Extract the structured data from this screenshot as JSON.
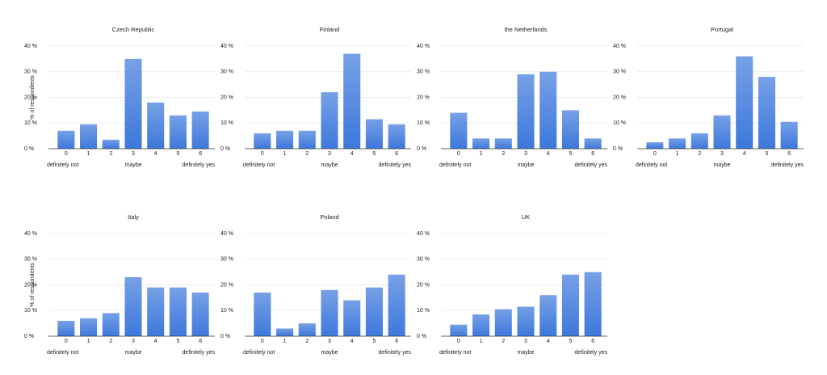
{
  "chart_data": [
    {
      "type": "bar",
      "title": "Czech Republic",
      "ylabel": "% of respondents",
      "categories": [
        "0",
        "1",
        "2",
        "3",
        "4",
        "5",
        "6"
      ],
      "values": [
        7,
        9.5,
        3.5,
        35,
        18,
        13,
        14.5
      ],
      "color": "#3d78dc",
      "ylim": [
        0,
        40
      ],
      "yticks": [
        {
          "value": 0,
          "label": "0 %"
        },
        {
          "value": 10,
          "label": "10 %"
        },
        {
          "value": 20,
          "label": "20 %"
        },
        {
          "value": 30,
          "label": "30 %"
        },
        {
          "value": 40,
          "label": "40 %"
        }
      ],
      "grid": true,
      "annotations": [
        "definitely not",
        "maybe",
        "definitely yes"
      ]
    },
    {
      "type": "bar",
      "title": "Finland",
      "categories": [
        "0",
        "1",
        "2",
        "3",
        "4",
        "5",
        "6"
      ],
      "values": [
        6,
        7,
        7,
        22,
        37,
        11.5,
        9.5
      ],
      "color": "#3d78dc",
      "ylim": [
        0,
        40
      ],
      "yticks": [
        {
          "value": 0,
          "label": "0 %"
        },
        {
          "value": 10,
          "label": "10 %"
        },
        {
          "value": 20,
          "label": "20 %"
        },
        {
          "value": 30,
          "label": "30 %"
        },
        {
          "value": 40,
          "label": "40 %"
        }
      ],
      "grid": true,
      "annotations": [
        "definitely not",
        "maybe",
        "definitely yes"
      ]
    },
    {
      "type": "bar",
      "title": "the Netherlands",
      "categories": [
        "0",
        "1",
        "2",
        "3",
        "4",
        "5",
        "6"
      ],
      "values": [
        14,
        4,
        4,
        29,
        30,
        15,
        4
      ],
      "color": "#3d78dc",
      "ylim": [
        0,
        40
      ],
      "yticks": [
        {
          "value": 0,
          "label": "0 %"
        },
        {
          "value": 10,
          "label": "10 %"
        },
        {
          "value": 20,
          "label": "20 %"
        },
        {
          "value": 30,
          "label": "30 %"
        },
        {
          "value": 40,
          "label": "40 %"
        }
      ],
      "grid": true,
      "annotations": [
        "definitely not",
        "maybe",
        "definitely yes"
      ]
    },
    {
      "type": "bar",
      "title": "Portugal",
      "categories": [
        "0",
        "1",
        "2",
        "3",
        "4",
        "5",
        "6"
      ],
      "values": [
        2.5,
        4,
        6,
        13,
        36,
        28,
        10.5
      ],
      "color": "#3d78dc",
      "ylim": [
        0,
        40
      ],
      "yticks": [
        {
          "value": 0,
          "label": "0 %"
        },
        {
          "value": 10,
          "label": "10 %"
        },
        {
          "value": 20,
          "label": "20 %"
        },
        {
          "value": 30,
          "label": "30 %"
        },
        {
          "value": 40,
          "label": "40 %"
        }
      ],
      "grid": true,
      "annotations": [
        "definitely not",
        "maybe",
        "definitely yes"
      ]
    },
    {
      "type": "bar",
      "title": "Italy",
      "ylabel": "% of respondents",
      "categories": [
        "0",
        "1",
        "2",
        "3",
        "4",
        "5",
        "6"
      ],
      "values": [
        6,
        7,
        9,
        23,
        19,
        19,
        17
      ],
      "color": "#3d78dc",
      "ylim": [
        0,
        40
      ],
      "yticks": [
        {
          "value": 0,
          "label": "0 %"
        },
        {
          "value": 10,
          "label": "10 %"
        },
        {
          "value": 20,
          "label": "20 %"
        },
        {
          "value": 30,
          "label": "30 %"
        },
        {
          "value": 40,
          "label": "40 %"
        }
      ],
      "grid": true,
      "annotations": [
        "definitely not",
        "maybe",
        "definitely yes"
      ]
    },
    {
      "type": "bar",
      "title": "Poland",
      "categories": [
        "0",
        "1",
        "2",
        "3",
        "4",
        "5",
        "6"
      ],
      "values": [
        17,
        3,
        5,
        18,
        14,
        19,
        24
      ],
      "color": "#3d78dc",
      "ylim": [
        0,
        40
      ],
      "yticks": [
        {
          "value": 0,
          "label": "0 %"
        },
        {
          "value": 10,
          "label": "10 %"
        },
        {
          "value": 20,
          "label": "20 %"
        },
        {
          "value": 30,
          "label": "30 %"
        },
        {
          "value": 40,
          "label": "40 %"
        }
      ],
      "grid": true,
      "annotations": [
        "definitely not",
        "maybe",
        "definitely yes"
      ]
    },
    {
      "type": "bar",
      "title": "UK",
      "categories": [
        "0",
        "1",
        "2",
        "3",
        "4",
        "5",
        "6"
      ],
      "values": [
        4.5,
        8.5,
        10.5,
        11.5,
        16,
        24,
        25
      ],
      "color": "#3d78dc",
      "ylim": [
        0,
        40
      ],
      "yticks": [
        {
          "value": 0,
          "label": "0 %"
        },
        {
          "value": 10,
          "label": "10 %"
        },
        {
          "value": 20,
          "label": "20 %"
        },
        {
          "value": 30,
          "label": "30 %"
        },
        {
          "value": 40,
          "label": "40 %"
        }
      ],
      "grid": true,
      "annotations": [
        "definitely not",
        "maybe",
        "definitely yes"
      ]
    }
  ]
}
